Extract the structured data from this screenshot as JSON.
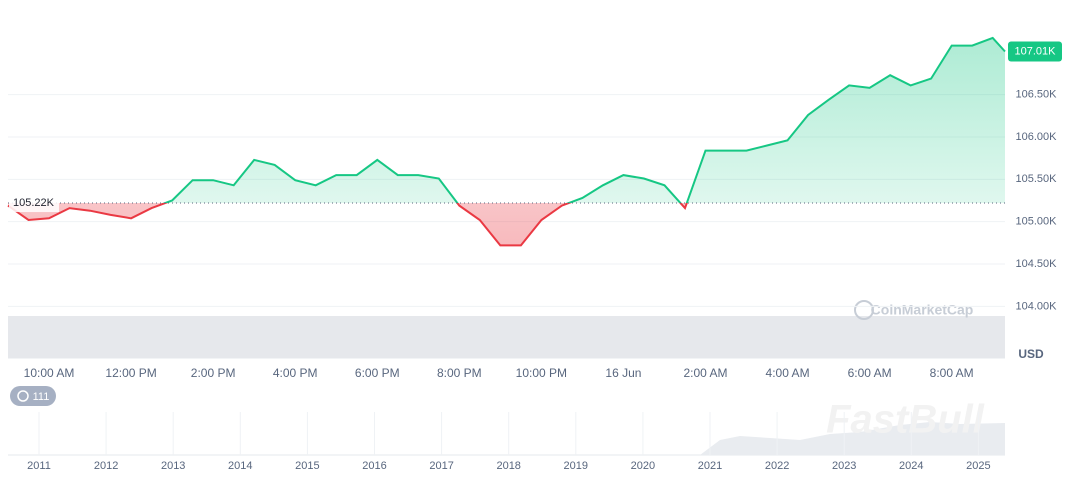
{
  "chart_data": {
    "type": "line",
    "x": [
      9,
      9.5,
      10,
      10.5,
      11,
      11.5,
      12,
      12.5,
      13,
      13.5,
      14,
      14.5,
      15,
      15.5,
      16,
      16.5,
      17,
      17.5,
      18,
      18.5,
      19,
      19.5,
      20,
      20.5,
      21,
      21.5,
      22,
      22.5,
      23,
      23.5,
      24,
      24.5,
      25,
      25.5,
      26,
      26.5,
      27,
      27.5,
      28,
      28.5,
      29,
      29.5,
      30,
      30.5,
      31,
      31.5,
      32,
      32.5,
      33,
      33.3
    ],
    "values": [
      105.19,
      105.02,
      105.04,
      105.16,
      105.13,
      105.08,
      105.04,
      105.16,
      105.25,
      105.49,
      105.49,
      105.43,
      105.73,
      105.67,
      105.49,
      105.43,
      105.55,
      105.55,
      105.73,
      105.55,
      105.55,
      105.51,
      105.19,
      105.02,
      104.72,
      104.72,
      105.02,
      105.19,
      105.28,
      105.43,
      105.55,
      105.51,
      105.43,
      105.16,
      105.84,
      105.84,
      105.84,
      105.9,
      105.96,
      106.26,
      106.44,
      106.61,
      106.58,
      106.73,
      106.61,
      106.69,
      107.08,
      107.08,
      107.17,
      107.01
    ],
    "up_color": "#16c784",
    "down_color": "#ea3943",
    "baseline": {
      "value": 105.22,
      "label": "105.22K"
    },
    "current_price": {
      "value": 107.01,
      "label": "107.01K"
    },
    "xlim": [
      9,
      33.3
    ],
    "xticks": [
      {
        "value": 10,
        "label": "10:00 AM"
      },
      {
        "value": 12,
        "label": "12:00 PM"
      },
      {
        "value": 14,
        "label": "2:00 PM"
      },
      {
        "value": 16,
        "label": "4:00 PM"
      },
      {
        "value": 18,
        "label": "6:00 PM"
      },
      {
        "value": 20,
        "label": "8:00 PM"
      },
      {
        "value": 22,
        "label": "10:00 PM"
      },
      {
        "value": 24,
        "label": "16 Jun"
      },
      {
        "value": 26,
        "label": "2:00 AM"
      },
      {
        "value": 28,
        "label": "4:00 AM"
      },
      {
        "value": 30,
        "label": "6:00 AM"
      },
      {
        "value": 32,
        "label": "8:00 AM"
      }
    ],
    "ylim": [
      103.39,
      107.5
    ],
    "yticks": [
      {
        "value": 104,
        "label": "104.00K"
      },
      {
        "value": 104.5,
        "label": "104.50K"
      },
      {
        "value": 105,
        "label": "105.00K"
      },
      {
        "value": 105.5,
        "label": "105.50K"
      },
      {
        "value": 106,
        "label": "106.00K"
      },
      {
        "value": 106.5,
        "label": "106.50K"
      }
    ],
    "grid": true,
    "currency": "USD",
    "watermark": "CoinMarketCap",
    "badge": "111",
    "navigator_years": [
      "2011",
      "2012",
      "2013",
      "2014",
      "2015",
      "2016",
      "2017",
      "2018",
      "2019",
      "2020",
      "2021",
      "2022",
      "2023",
      "2024",
      "2025"
    ],
    "brand": "FastBull"
  }
}
